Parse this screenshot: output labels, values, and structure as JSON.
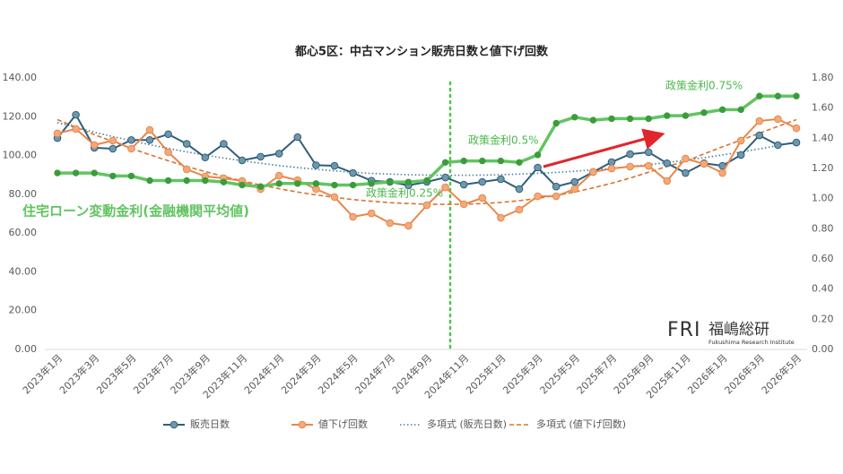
{
  "chart_data": {
    "type": "line",
    "title": "都心5区：中古マンション販売日数と値下げ回数",
    "categories": [
      "2023年1月",
      null,
      "2023年3月",
      null,
      "2023年5月",
      null,
      "2023年7月",
      null,
      "2023年9月",
      null,
      "2023年11月",
      null,
      "2024年1月",
      null,
      "2024年3月",
      null,
      "2024年5月",
      null,
      "2024年7月",
      null,
      "2024年9月",
      null,
      "2024年11月",
      null,
      "2025年1月",
      null,
      "2025年3月",
      null,
      "2025年5月",
      null,
      "2025年7月",
      null,
      "2025年9月",
      null,
      "2025年11月",
      null,
      "2026年1月",
      null,
      "2026年3月",
      null,
      "2026年5月"
    ],
    "series": [
      {
        "name": "販売日数",
        "color": "#2f5f7a",
        "marker_color": "#6f97ab",
        "axis": "y",
        "values": [
          109,
          121,
          104,
          103.5,
          108,
          108,
          111,
          106,
          99,
          106,
          97.5,
          99.4,
          101,
          109.5,
          95,
          94.7,
          91,
          87,
          86.4,
          84.6,
          86.4,
          88.7,
          85,
          86.4,
          87.8,
          82.7,
          93.8,
          84,
          86.4,
          91.5,
          96.6,
          100.7,
          101.7,
          96,
          91,
          96,
          94.7,
          100.3,
          110.4,
          105.4,
          106.7
        ]
      },
      {
        "name": "値下げ回数",
        "color": "#e8874a",
        "marker_color": "#f2aa7c",
        "axis": "y",
        "values": [
          111.4,
          113.7,
          105.4,
          107.7,
          103.5,
          113.2,
          101.7,
          92.9,
          89.2,
          88.3,
          86.9,
          82.7,
          89.6,
          87.3,
          82.7,
          78.6,
          68.4,
          70.2,
          65.2,
          63.8,
          74.4,
          83.6,
          74.9,
          78.1,
          67.9,
          72.1,
          79,
          79,
          82.7,
          91.5,
          93.3,
          94.3,
          94.7,
          86.9,
          98.4,
          95.7,
          91,
          107.7,
          117.8,
          118.8,
          114.1
        ]
      },
      {
        "name": "住宅ローン変動金利(金融機関平均値)",
        "color": "#62c462",
        "marker_color": "#3b9c3b",
        "axis": "y2",
        "in_legend": false,
        "values": [
          1.17,
          1.17,
          1.17,
          1.15,
          1.15,
          1.12,
          1.12,
          1.12,
          1.12,
          1.11,
          1.09,
          1.08,
          1.1,
          1.1,
          1.1,
          1.09,
          1.09,
          1.1,
          1.11,
          1.11,
          1.12,
          1.24,
          1.25,
          1.25,
          1.25,
          1.24,
          1.29,
          1.5,
          1.54,
          1.52,
          1.53,
          1.53,
          1.53,
          1.55,
          1.55,
          1.57,
          1.59,
          1.59,
          1.68,
          1.68,
          1.68
        ]
      }
    ],
    "trendlines": [
      {
        "name": "多項式 (販売日数)",
        "color": "#4a7f9c",
        "dash": "dotted",
        "values": [
          117,
          114.5,
          112,
          109.8,
          107.6,
          105.6,
          103.7,
          101.9,
          100.2,
          98.7,
          97.3,
          96,
          94.8,
          93.8,
          92.9,
          92.1,
          91.4,
          90.8,
          90.4,
          90.1,
          89.9,
          89.8,
          89.8,
          89.9,
          90.1,
          90.4,
          90.8,
          91.3,
          91.9,
          92.6,
          93.4,
          94.3,
          95.3,
          96.4,
          97.6,
          98.9,
          100.3,
          101.8,
          103.4,
          105.1,
          106.9
        ]
      },
      {
        "name": "多項式 (値下げ回数)",
        "color": "#d9742f",
        "dash": "dashed",
        "values": [
          118.5,
          114.6,
          110.8,
          107.2,
          103.7,
          100.4,
          97.3,
          94.4,
          91.7,
          89.2,
          86.9,
          84.8,
          82.9,
          81.2,
          79.7,
          78.4,
          77.3,
          76.4,
          75.7,
          75.2,
          74.9,
          74.8,
          74.9,
          75.2,
          75.8,
          76.7,
          77.9,
          79.4,
          81.2,
          83.3,
          85.7,
          88.4,
          91.4,
          94.4,
          97,
          100.8,
          104.5,
          108,
          111.5,
          115,
          118.5
        ]
      }
    ],
    "annotations": [
      "政策金利0.25%",
      "政策金利0.5%",
      "政策金利0.75%"
    ],
    "ylim": [
      0,
      140
    ],
    "yticks": [
      {
        "value": 0,
        "label": "0.00"
      },
      {
        "value": 20,
        "label": "20.00"
      },
      {
        "value": 40,
        "label": "40.00"
      },
      {
        "value": 60,
        "label": "60.00"
      },
      {
        "value": 80,
        "label": "80.00"
      },
      {
        "value": 100,
        "label": "100.00"
      },
      {
        "value": 120,
        "label": "120.00"
      },
      {
        "value": 140,
        "label": "140.00"
      }
    ],
    "y2lim": [
      0,
      1.8
    ],
    "y2ticks": [
      {
        "value": 0,
        "label": "0.00"
      },
      {
        "value": 0.2,
        "label": "0.20"
      },
      {
        "value": 0.4,
        "label": "0.40"
      },
      {
        "value": 0.6,
        "label": "0.60"
      },
      {
        "value": 0.8,
        "label": "0.80"
      },
      {
        "value": 1,
        "label": "1.00"
      },
      {
        "value": 1.2,
        "label": "1.20"
      },
      {
        "value": 1.4,
        "label": "1.40"
      },
      {
        "value": 1.6,
        "label": "1.60"
      },
      {
        "value": 1.8,
        "label": "1.80"
      }
    ],
    "grid": false,
    "legend": "bottom"
  },
  "logo": {
    "mark": "FRI",
    "name": "福嶋総研",
    "subtitle": "Fukushima Research Institute"
  }
}
